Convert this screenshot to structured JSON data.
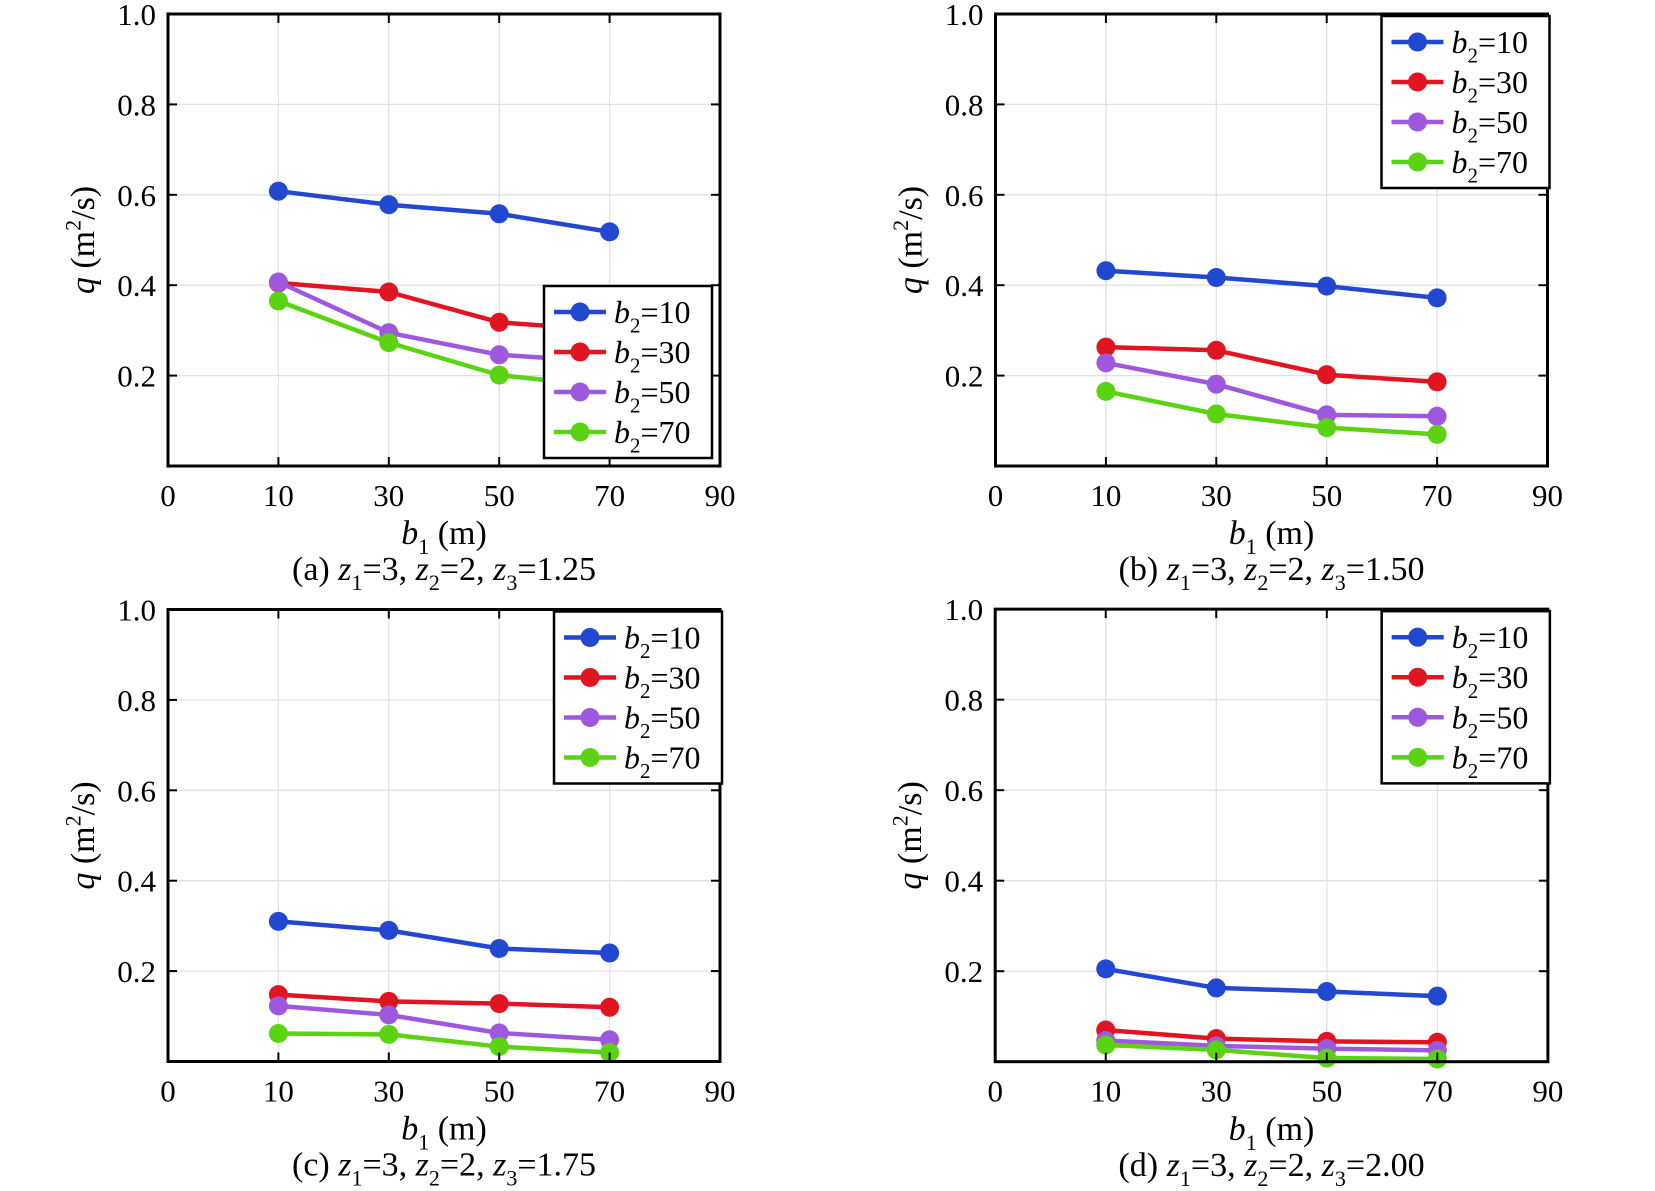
{
  "page": {
    "background": "#ffffff"
  },
  "style": {
    "grid_color": "#dfe2e5",
    "axis_color": "#000000",
    "legend_background": "#ffffff",
    "legend_border_color": "#000000",
    "series_colors": {
      "b2_10": "#2247d0",
      "b2_30": "#e11421",
      "b2_50": "#9d58de",
      "b2_70": "#5ad313"
    }
  },
  "chart_data": [
    {
      "id": "a",
      "type": "line",
      "caption": "(a) z_1=3, z_2=2, z_3=1.25",
      "xlabel": "b_1 (m)",
      "ylabel": "q (m^2/s)",
      "xticks": [
        "0",
        "10",
        "30",
        "50",
        "70",
        "90"
      ],
      "yticks": [
        "0.2",
        "0.4",
        "0.6",
        "0.8",
        "1.0"
      ],
      "ylim": [
        0,
        1
      ],
      "x": [
        10,
        30,
        50,
        70
      ],
      "grid": true,
      "legend_position": "inside-bottom-right",
      "series": [
        {
          "name": "b_2=10",
          "color": "#2247d0",
          "values": [
            0.608,
            0.578,
            0.558,
            0.518
          ]
        },
        {
          "name": "b_2=30",
          "color": "#e11421",
          "values": [
            0.405,
            0.385,
            0.318,
            0.3
          ]
        },
        {
          "name": "b_2=50",
          "color": "#9d58de",
          "values": [
            0.407,
            0.295,
            0.246,
            0.23
          ]
        },
        {
          "name": "b_2=70",
          "color": "#5ad313",
          "values": [
            0.365,
            0.273,
            0.201,
            0.175
          ]
        }
      ]
    },
    {
      "id": "b",
      "type": "line",
      "caption": "(b) z_1=3, z_2=2, z_3=1.50",
      "xlabel": "b_1 (m)",
      "ylabel": "q (m^2/s)",
      "xticks": [
        "0",
        "10",
        "30",
        "50",
        "70",
        "90"
      ],
      "yticks": [
        "0.2",
        "0.4",
        "0.6",
        "0.8",
        "1.0"
      ],
      "ylim": [
        0,
        1
      ],
      "x": [
        10,
        30,
        50,
        70
      ],
      "grid": true,
      "legend_position": "inside-top-right",
      "series": [
        {
          "name": "b_2=10",
          "color": "#2247d0",
          "values": [
            0.432,
            0.417,
            0.398,
            0.372
          ]
        },
        {
          "name": "b_2=30",
          "color": "#e11421",
          "values": [
            0.263,
            0.256,
            0.202,
            0.186
          ]
        },
        {
          "name": "b_2=50",
          "color": "#9d58de",
          "values": [
            0.228,
            0.181,
            0.113,
            0.11
          ]
        },
        {
          "name": "b_2=70",
          "color": "#5ad313",
          "values": [
            0.165,
            0.115,
            0.085,
            0.07
          ]
        }
      ]
    },
    {
      "id": "c",
      "type": "line",
      "caption": "(c) z_1=3, z_2=2, z_3=1.75",
      "xlabel": "b_1 (m)",
      "ylabel": "q (m^2/s)",
      "xticks": [
        "0",
        "10",
        "30",
        "50",
        "70",
        "90"
      ],
      "yticks": [
        "0.2",
        "0.4",
        "0.6",
        "0.8",
        "1.0"
      ],
      "ylim": [
        0,
        1
      ],
      "x": [
        10,
        30,
        50,
        70
      ],
      "grid": true,
      "legend_position": "inside-top-right",
      "series": [
        {
          "name": "b_2=10",
          "color": "#2247d0",
          "values": [
            0.31,
            0.29,
            0.25,
            0.24
          ]
        },
        {
          "name": "b_2=30",
          "color": "#e11421",
          "values": [
            0.148,
            0.133,
            0.128,
            0.12
          ]
        },
        {
          "name": "b_2=50",
          "color": "#9d58de",
          "values": [
            0.123,
            0.103,
            0.063,
            0.048
          ]
        },
        {
          "name": "b_2=70",
          "color": "#5ad313",
          "values": [
            0.062,
            0.06,
            0.033,
            0.02
          ]
        }
      ]
    },
    {
      "id": "d",
      "type": "line",
      "caption": "(d) z_1=3, z_2=2, z_3=2.00",
      "xlabel": "b_1 (m)",
      "ylabel": "q (m^2/s)",
      "xticks": [
        "0",
        "10",
        "30",
        "50",
        "70",
        "90"
      ],
      "yticks": [
        "0.2",
        "0.4",
        "0.6",
        "0.8",
        "1.0"
      ],
      "ylim": [
        0,
        1
      ],
      "x": [
        10,
        30,
        50,
        70
      ],
      "grid": true,
      "legend_position": "inside-top-right",
      "series": [
        {
          "name": "b_2=10",
          "color": "#2247d0",
          "values": [
            0.205,
            0.163,
            0.155,
            0.145
          ]
        },
        {
          "name": "b_2=30",
          "color": "#e11421",
          "values": [
            0.07,
            0.051,
            0.045,
            0.043
          ]
        },
        {
          "name": "b_2=50",
          "color": "#9d58de",
          "values": [
            0.047,
            0.035,
            0.029,
            0.025
          ]
        },
        {
          "name": "b_2=70",
          "color": "#5ad313",
          "values": [
            0.037,
            0.026,
            0.008,
            0.006
          ]
        }
      ]
    }
  ]
}
